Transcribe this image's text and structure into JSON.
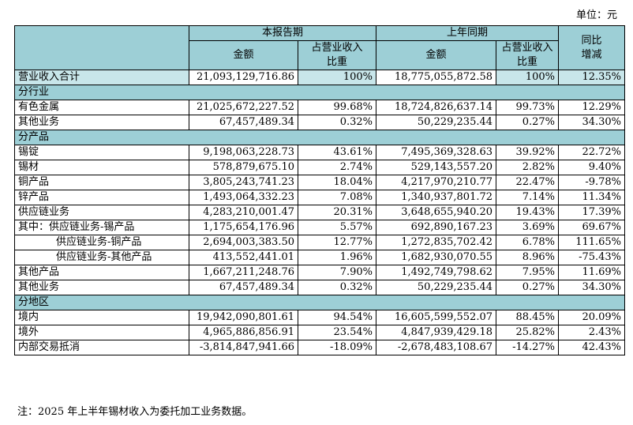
{
  "unit": "单位：元",
  "header": {
    "current_period": "本报告期",
    "prior_period": "上年同期",
    "yoy_line1": "同比",
    "yoy_line2": "增减",
    "amount": "金额",
    "share_line1": "占营业收入",
    "share_line2": "比重"
  },
  "total": {
    "label": "营业收入合计",
    "cur_amount": "21,093,129,716.86",
    "cur_share": "100%",
    "prev_amount": "18,775,055,872.58",
    "prev_share": "100%",
    "yoy": "12.35%"
  },
  "sections": [
    {
      "title": "分行业",
      "rows": [
        {
          "label": "有色金属",
          "cur_amount": "21,025,672,227.52",
          "cur_share": "99.68%",
          "prev_amount": "18,724,826,637.14",
          "prev_share": "99.73%",
          "yoy": "12.29%"
        },
        {
          "label": "其他业务",
          "cur_amount": "67,457,489.34",
          "cur_share": "0.32%",
          "prev_amount": "50,229,235.44",
          "prev_share": "0.27%",
          "yoy": "34.30%"
        }
      ]
    },
    {
      "title": "分产品",
      "rows": [
        {
          "label": "锡锭",
          "cur_amount": "9,198,063,228.73",
          "cur_share": "43.61%",
          "prev_amount": "7,495,369,328.63",
          "prev_share": "39.92%",
          "yoy": "22.72%"
        },
        {
          "label": "锡材",
          "cur_amount": "578,879,675.10",
          "cur_share": "2.74%",
          "prev_amount": "529,143,557.20",
          "prev_share": "2.82%",
          "yoy": "9.40%"
        },
        {
          "label": "铜产品",
          "cur_amount": "3,805,243,741.23",
          "cur_share": "18.04%",
          "prev_amount": "4,217,970,210.77",
          "prev_share": "22.47%",
          "yoy": "-9.78%"
        },
        {
          "label": "锌产品",
          "cur_amount": "1,493,064,332.23",
          "cur_share": "7.08%",
          "prev_amount": "1,340,937,801.72",
          "prev_share": "7.14%",
          "yoy": "11.34%"
        },
        {
          "label": "供应链业务",
          "cur_amount": "4,283,210,001.47",
          "cur_share": "20.31%",
          "prev_amount": "3,648,655,940.20",
          "prev_share": "19.43%",
          "yoy": "17.39%"
        },
        {
          "label": "其中：供应链业务-锡产品",
          "cur_amount": "1,175,654,176.96",
          "cur_share": "5.57%",
          "prev_amount": "692,890,167.23",
          "prev_share": "3.69%",
          "yoy": "69.67%"
        },
        {
          "label": "供应链业务-铜产品",
          "indent": true,
          "cur_amount": "2,694,003,383.50",
          "cur_share": "12.77%",
          "prev_amount": "1,272,835,702.42",
          "prev_share": "6.78%",
          "yoy": "111.65%"
        },
        {
          "label": "供应链业务-其他产品",
          "indent": true,
          "cur_amount": "413,552,441.01",
          "cur_share": "1.96%",
          "prev_amount": "1,682,930,070.55",
          "prev_share": "8.96%",
          "yoy": "-75.43%"
        },
        {
          "label": "其他产品",
          "cur_amount": "1,667,211,248.76",
          "cur_share": "7.90%",
          "prev_amount": "1,492,749,798.62",
          "prev_share": "7.95%",
          "yoy": "11.69%"
        },
        {
          "label": "其他业务",
          "cur_amount": "67,457,489.34",
          "cur_share": "0.32%",
          "prev_amount": "50,229,235.44",
          "prev_share": "0.27%",
          "yoy": "34.30%"
        }
      ]
    },
    {
      "title": "分地区",
      "rows": [
        {
          "label": "境内",
          "cur_amount": "19,942,090,801.61",
          "cur_share": "94.54%",
          "prev_amount": "16,605,599,552.07",
          "prev_share": "88.45%",
          "yoy": "20.09%"
        },
        {
          "label": "境外",
          "cur_amount": "4,965,886,856.91",
          "cur_share": "23.54%",
          "prev_amount": "4,847,939,429.18",
          "prev_share": "25.82%",
          "yoy": "2.43%"
        },
        {
          "label": "内部交易抵消",
          "cur_amount": "-3,814,847,941.66",
          "cur_share": "-18.09%",
          "prev_amount": "-2,678,483,108.67",
          "prev_share": "-14.27%",
          "yoy": "42.43%"
        }
      ]
    }
  ],
  "note": "注：2025 年上半年锡材收入为委托加工业务数据。"
}
